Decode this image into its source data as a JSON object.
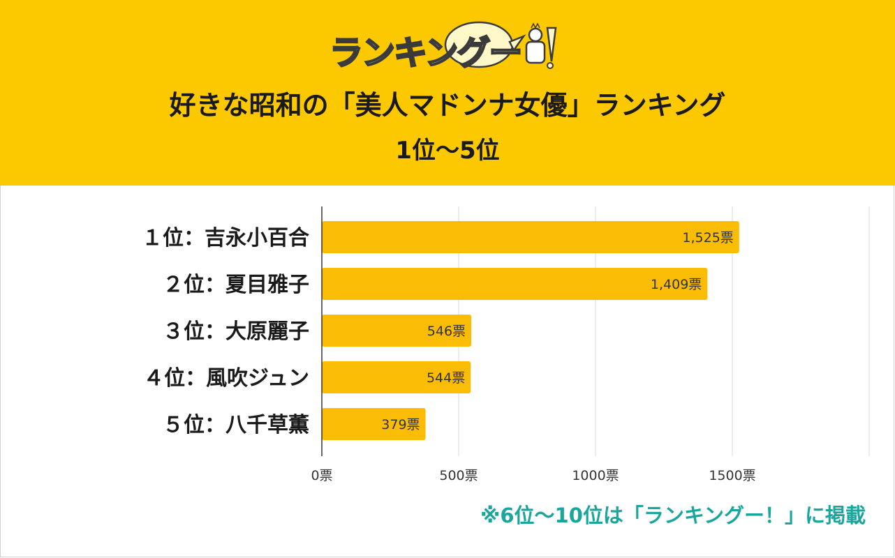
{
  "header": {
    "logo_text": "ランキングー",
    "logo_mark": "!",
    "title": "好きな昭和の「美人マドンナ女優」ランキング",
    "subtitle": "1位～5位"
  },
  "colors": {
    "header_bg": "#fcc800",
    "bar": "#fbbc05",
    "note": "#1aa59d"
  },
  "chart_data": {
    "type": "bar",
    "orientation": "horizontal",
    "categories": [
      "１位：吉永小百合",
      "２位：夏目雅子",
      "３位：大原麗子",
      "４位：風吹ジュン",
      "５位：八千草薫"
    ],
    "values": [
      1525,
      1409,
      546,
      544,
      379
    ],
    "value_labels": [
      "1,525票",
      "1,409票",
      "546票",
      "544票",
      "379票"
    ],
    "xlim": [
      0,
      2000
    ],
    "xticks": [
      0,
      500,
      1000,
      1500,
      2000
    ],
    "xtick_labels": [
      "0票",
      "500票",
      "1000票",
      "1500票",
      ""
    ],
    "grid": true,
    "title": "好きな昭和の「美人マドンナ女優」ランキング"
  },
  "footer": {
    "note": "※6位～10位は「ランキングー！」に掲載"
  }
}
